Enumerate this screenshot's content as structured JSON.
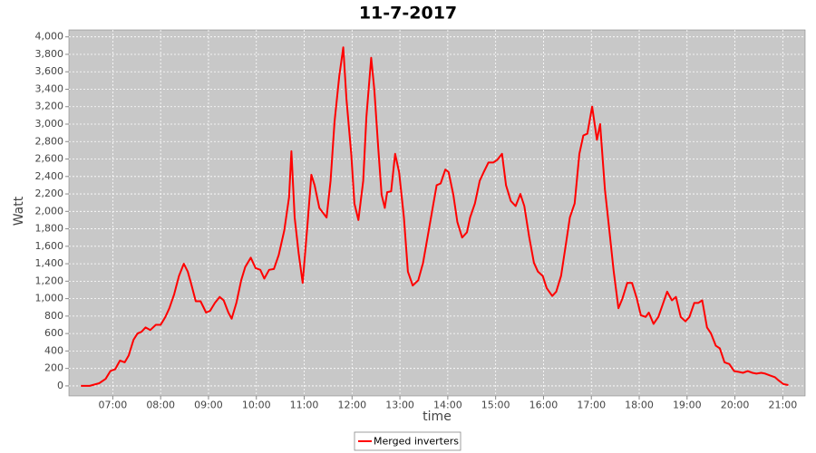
{
  "chart_data": {
    "type": "line",
    "title": "11-7-2017",
    "xlabel": "time",
    "ylabel": "Watt",
    "x": [
      "06:20",
      "06:31",
      "06:43",
      "06:51",
      "06:57",
      "07:03",
      "07:09",
      "07:15",
      "07:20",
      "07:26",
      "07:31",
      "07:36",
      "07:41",
      "07:47",
      "07:54",
      "08:00",
      "08:06",
      "08:11",
      "08:17",
      "08:23",
      "08:29",
      "08:34",
      "08:38",
      "08:44",
      "08:50",
      "08:57",
      "09:02",
      "09:08",
      "09:14",
      "09:19",
      "09:25",
      "09:29",
      "09:35",
      "09:41",
      "09:46",
      "09:53",
      "09:59",
      "10:05",
      "10:10",
      "10:16",
      "10:22",
      "10:28",
      "10:35",
      "10:41",
      "10:44",
      "10:48",
      "10:53",
      "10:58",
      "11:04",
      "11:09",
      "11:13",
      "11:19",
      "11:23",
      "11:28",
      "11:33",
      "11:38",
      "11:44",
      "11:49",
      "11:53",
      "11:59",
      "12:03",
      "12:08",
      "12:14",
      "12:18",
      "12:24",
      "12:28",
      "12:33",
      "12:37",
      "12:41",
      "12:44",
      "12:49",
      "12:54",
      "12:59",
      "13:05",
      "13:10",
      "13:16",
      "13:23",
      "13:29",
      "13:34",
      "13:41",
      "13:46",
      "13:51",
      "13:57",
      "14:01",
      "14:07",
      "14:12",
      "14:18",
      "14:24",
      "14:28",
      "14:34",
      "14:40",
      "14:45",
      "14:51",
      "14:57",
      "15:02",
      "15:08",
      "15:13",
      "15:19",
      "15:25",
      "15:31",
      "15:36",
      "15:42",
      "15:48",
      "15:53",
      "15:59",
      "16:04",
      "16:11",
      "16:16",
      "16:22",
      "16:28",
      "16:33",
      "16:39",
      "16:45",
      "16:50",
      "16:55",
      "17:01",
      "17:07",
      "17:11",
      "17:17",
      "17:22",
      "17:28",
      "17:34",
      "17:39",
      "17:45",
      "17:51",
      "17:57",
      "18:02",
      "18:08",
      "18:12",
      "18:18",
      "18:24",
      "18:29",
      "18:35",
      "18:41",
      "18:46",
      "18:52",
      "18:58",
      "19:03",
      "19:09",
      "19:14",
      "19:19",
      "19:25",
      "19:30",
      "19:36",
      "19:41",
      "19:47",
      "19:53",
      "19:59",
      "20:05",
      "20:10",
      "20:16",
      "20:22",
      "20:27",
      "20:33",
      "20:38",
      "20:44",
      "20:50",
      "20:55",
      "21:01",
      "21:07"
    ],
    "series": [
      {
        "name": "Merged inverters",
        "color": "#ff0000",
        "values": [
          0,
          0,
          30,
          80,
          170,
          190,
          290,
          270,
          350,
          530,
          600,
          620,
          670,
          640,
          700,
          700,
          790,
          890,
          1050,
          1260,
          1400,
          1310,
          1180,
          970,
          970,
          840,
          860,
          950,
          1020,
          980,
          840,
          770,
          950,
          1210,
          1360,
          1470,
          1350,
          1330,
          1230,
          1330,
          1340,
          1500,
          1780,
          2160,
          2690,
          1930,
          1520,
          1180,
          1830,
          2420,
          2300,
          2040,
          1990,
          1930,
          2350,
          3030,
          3550,
          3880,
          3290,
          2660,
          2090,
          1900,
          2350,
          3080,
          3760,
          3390,
          2710,
          2190,
          2040,
          2220,
          2230,
          2660,
          2450,
          1930,
          1310,
          1150,
          1210,
          1410,
          1670,
          2040,
          2300,
          2320,
          2480,
          2450,
          2190,
          1880,
          1700,
          1760,
          1930,
          2090,
          2350,
          2450,
          2560,
          2560,
          2590,
          2660,
          2300,
          2120,
          2060,
          2200,
          2060,
          1710,
          1410,
          1310,
          1260,
          1120,
          1030,
          1080,
          1260,
          1620,
          1930,
          2090,
          2660,
          2870,
          2890,
          3200,
          2820,
          3000,
          2250,
          1830,
          1310,
          890,
          1000,
          1180,
          1180,
          1000,
          810,
          790,
          840,
          710,
          790,
          920,
          1080,
          980,
          1020,
          790,
          740,
          790,
          950,
          950,
          980,
          670,
          600,
          460,
          430,
          270,
          250,
          170,
          160,
          150,
          170,
          150,
          140,
          150,
          140,
          120,
          100,
          60,
          20,
          10
        ]
      }
    ],
    "xlim": [
      "06:05",
      "21:28"
    ],
    "xticks": [
      "07:00",
      "08:00",
      "09:00",
      "10:00",
      "11:00",
      "12:00",
      "13:00",
      "14:00",
      "15:00",
      "16:00",
      "17:00",
      "18:00",
      "19:00",
      "20:00",
      "21:00"
    ],
    "ylim": [
      -115,
      4080
    ],
    "yticks": [
      0,
      200,
      400,
      600,
      800,
      {
        "value": 1000,
        "label": "1,000"
      },
      {
        "value": 1200,
        "label": "1,200"
      },
      {
        "value": 1400,
        "label": "1,400"
      },
      {
        "value": 1600,
        "label": "1,600"
      },
      {
        "value": 1800,
        "label": "1,800"
      },
      {
        "value": 2000,
        "label": "2,000"
      },
      {
        "value": 2200,
        "label": "2,200"
      },
      {
        "value": 2400,
        "label": "2,400"
      },
      {
        "value": 2600,
        "label": "2,600"
      },
      {
        "value": 2800,
        "label": "2,800"
      },
      {
        "value": 3000,
        "label": "3,000"
      },
      {
        "value": 3200,
        "label": "3,200"
      },
      {
        "value": 3400,
        "label": "3,400"
      },
      {
        "value": 3600,
        "label": "3,600"
      },
      {
        "value": 3800,
        "label": "3,800"
      },
      {
        "value": 4000,
        "label": "4,000"
      }
    ],
    "grid": true
  }
}
